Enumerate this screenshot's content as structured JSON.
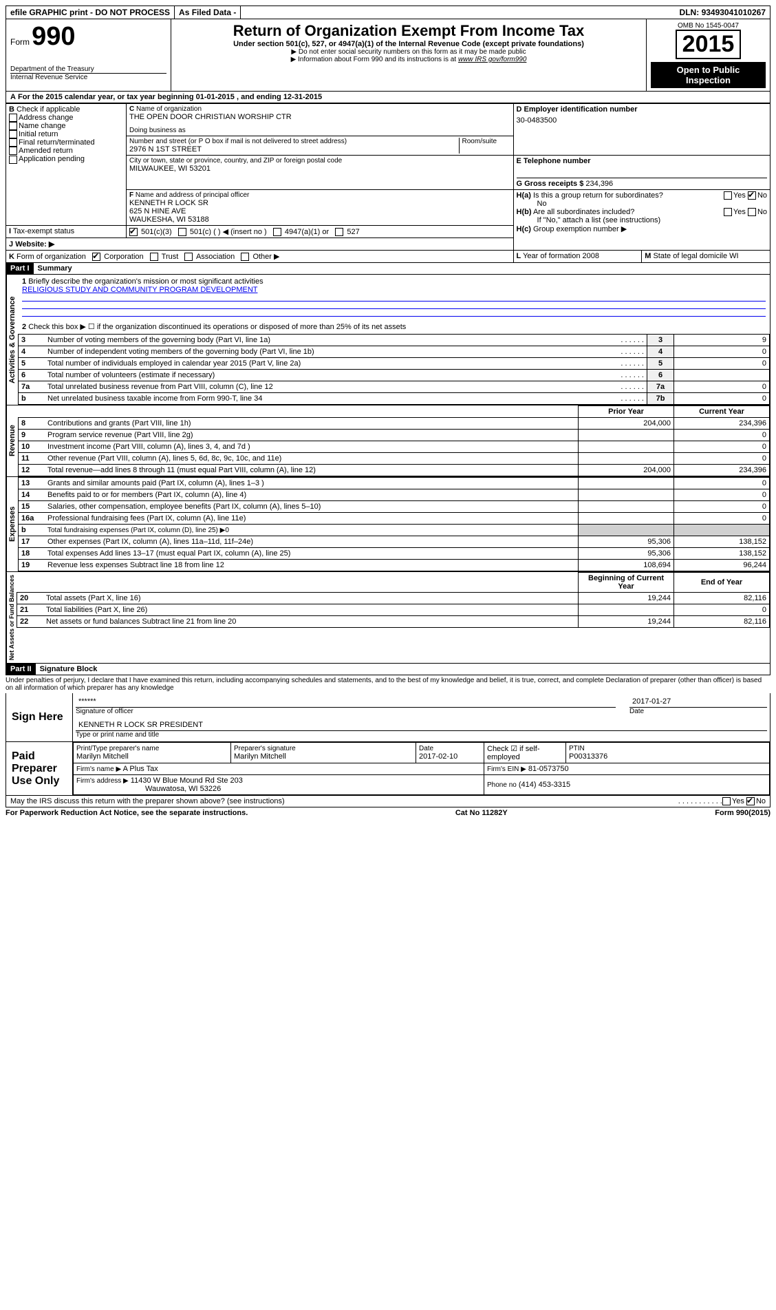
{
  "topbar": {
    "efile": "efile GRAPHIC print - DO NOT PROCESS",
    "asfiled": "As Filed Data -",
    "dln_label": "DLN:",
    "dln": "93493041010267"
  },
  "header": {
    "form_label": "Form",
    "form_number": "990",
    "dept": "Department of the Treasury",
    "irs": "Internal Revenue Service",
    "title": "Return of Organization Exempt From Income Tax",
    "subtitle": "Under section 501(c), 527, or 4947(a)(1) of the Internal Revenue Code (except private foundations)",
    "note1": "▶ Do not enter social security numbers on this form as it may be made public",
    "note2": "▶ Information about Form 990 and its instructions is at",
    "note2_link": "www IRS gov/form990",
    "omb": "OMB No 1545-0047",
    "year": "2015",
    "open_public": "Open to Public Inspection"
  },
  "line_a": {
    "text": "For the 2015 calendar year, or tax year beginning",
    "begin": "01-01-2015",
    "mid": ", and ending",
    "end": "12-31-2015"
  },
  "box_b": {
    "title": "Check if applicable",
    "items": [
      "Address change",
      "Name change",
      "Initial return",
      "Final return/terminated",
      "Amended return",
      "Application pending"
    ]
  },
  "box_c": {
    "label_name": "Name of organization",
    "name": "THE OPEN DOOR CHRISTIAN WORSHIP CTR",
    "dba_label": "Doing business as",
    "dba": "",
    "street_label": "Number and street (or P O box if mail is not delivered to street address)",
    "room_label": "Room/suite",
    "street": "2976 N 1ST STREET",
    "city_label": "City or town, state or province, country, and ZIP or foreign postal code",
    "city": "MILWAUKEE, WI  53201"
  },
  "box_d": {
    "label": "D Employer identification number",
    "value": "30-0483500"
  },
  "box_e": {
    "label": "E Telephone number",
    "value": ""
  },
  "box_g": {
    "label": "G Gross receipts $",
    "value": "234,396"
  },
  "box_f": {
    "label": "Name and address of principal officer",
    "name": "KENNETH R LOCK SR",
    "street": "625 N HINE AVE",
    "city": "WAUKESHA, WI  53188"
  },
  "box_h": {
    "a_label": "Is this a group return for subordinates?",
    "a_yes": "Yes",
    "a_no": "No",
    "a_answer": "No",
    "b_label": "Are all subordinates included?",
    "b_note": "If \"No,\" attach a list (see instructions)",
    "c_label": "Group exemption number ▶"
  },
  "box_i": {
    "label": "Tax-exempt status",
    "opts": [
      "501(c)(3)",
      "501(c) (  ) ◀ (insert no )",
      "4947(a)(1) or",
      "527"
    ]
  },
  "box_j": {
    "label": "Website: ▶"
  },
  "box_k": {
    "label": "Form of organization",
    "opts": [
      "Corporation",
      "Trust",
      "Association",
      "Other ▶"
    ]
  },
  "box_l": {
    "label": "Year of formation",
    "value": "2008"
  },
  "box_m": {
    "label": "State of legal domicile",
    "value": "WI"
  },
  "part1": {
    "header": "Part I",
    "title": "Summary",
    "line1_label": "Briefly describe the organization's mission or most significant activities",
    "mission": "RELIGIOUS STUDY AND COMMUNITY PROGRAM DEVELOPMENT",
    "line2": "Check this box ▶ ☐ if the organization discontinued its operations or disposed of more than 25% of its net assets",
    "vert_gov": "Activities & Governance",
    "vert_rev": "Revenue",
    "vert_exp": "Expenses",
    "vert_net": "Net Assets or Fund Balances",
    "prior_hdr": "Prior Year",
    "current_hdr": "Current Year",
    "begin_hdr": "Beginning of Current Year",
    "end_hdr": "End of Year",
    "rows_gov": [
      {
        "n": "3",
        "desc": "Number of voting members of the governing body (Part VI, line 1a)",
        "box": "3",
        "val": "9"
      },
      {
        "n": "4",
        "desc": "Number of independent voting members of the governing body (Part VI, line 1b)",
        "box": "4",
        "val": "0"
      },
      {
        "n": "5",
        "desc": "Total number of individuals employed in calendar year 2015 (Part V, line 2a)",
        "box": "5",
        "val": "0"
      },
      {
        "n": "6",
        "desc": "Total number of volunteers (estimate if necessary)",
        "box": "6",
        "val": ""
      },
      {
        "n": "7a",
        "desc": "Total unrelated business revenue from Part VIII, column (C), line 12",
        "box": "7a",
        "val": "0"
      },
      {
        "n": "b",
        "desc": "Net unrelated business taxable income from Form 990-T, line 34",
        "box": "7b",
        "val": "0"
      }
    ],
    "rows_rev": [
      {
        "n": "8",
        "desc": "Contributions and grants (Part VIII, line 1h)",
        "prior": "204,000",
        "cur": "234,396"
      },
      {
        "n": "9",
        "desc": "Program service revenue (Part VIII, line 2g)",
        "prior": "",
        "cur": "0"
      },
      {
        "n": "10",
        "desc": "Investment income (Part VIII, column (A), lines 3, 4, and 7d )",
        "prior": "",
        "cur": "0"
      },
      {
        "n": "11",
        "desc": "Other revenue (Part VIII, column (A), lines 5, 6d, 8c, 9c, 10c, and 11e)",
        "prior": "",
        "cur": "0"
      },
      {
        "n": "12",
        "desc": "Total revenue—add lines 8 through 11 (must equal Part VIII, column (A), line 12)",
        "prior": "204,000",
        "cur": "234,396"
      }
    ],
    "rows_exp": [
      {
        "n": "13",
        "desc": "Grants and similar amounts paid (Part IX, column (A), lines 1–3 )",
        "prior": "",
        "cur": "0"
      },
      {
        "n": "14",
        "desc": "Benefits paid to or for members (Part IX, column (A), line 4)",
        "prior": "",
        "cur": "0"
      },
      {
        "n": "15",
        "desc": "Salaries, other compensation, employee benefits (Part IX, column (A), lines 5–10)",
        "prior": "",
        "cur": "0"
      },
      {
        "n": "16a",
        "desc": "Professional fundraising fees (Part IX, column (A), line 11e)",
        "prior": "",
        "cur": "0"
      },
      {
        "n": "b",
        "desc": "Total fundraising expenses (Part IX, column (D), line 25) ▶0",
        "prior": "shaded",
        "cur": "shaded"
      },
      {
        "n": "17",
        "desc": "Other expenses (Part IX, column (A), lines 11a–11d, 11f–24e)",
        "prior": "95,306",
        "cur": "138,152"
      },
      {
        "n": "18",
        "desc": "Total expenses Add lines 13–17 (must equal Part IX, column (A), line 25)",
        "prior": "95,306",
        "cur": "138,152"
      },
      {
        "n": "19",
        "desc": "Revenue less expenses Subtract line 18 from line 12",
        "prior": "108,694",
        "cur": "96,244"
      }
    ],
    "rows_net": [
      {
        "n": "20",
        "desc": "Total assets (Part X, line 16)",
        "prior": "19,244",
        "cur": "82,116"
      },
      {
        "n": "21",
        "desc": "Total liabilities (Part X, line 26)",
        "prior": "",
        "cur": "0"
      },
      {
        "n": "22",
        "desc": "Net assets or fund balances Subtract line 21 from line 20",
        "prior": "19,244",
        "cur": "82,116"
      }
    ]
  },
  "part2": {
    "header": "Part II",
    "title": "Signature Block",
    "perjury": "Under penalties of perjury, I declare that I have examined this return, including accompanying schedules and statements, and to the best of my knowledge and belief, it is true, correct, and complete Declaration of preparer (other than officer) is based on all information of which preparer has any knowledge",
    "sign_here": "Sign Here",
    "sig_stars": "******",
    "sig_officer_label": "Signature of officer",
    "sig_date_label": "Date",
    "sig_date": "2017-01-27",
    "sig_name": "KENNETH R LOCK SR PRESIDENT",
    "sig_name_label": "Type or print name and title",
    "paid_label": "Paid Preparer Use Only",
    "prep_name_label": "Print/Type preparer's name",
    "prep_name": "Marilyn Mitchell",
    "prep_sig_label": "Preparer's signature",
    "prep_sig": "Marilyn Mitchell",
    "prep_date_label": "Date",
    "prep_date": "2017-02-10",
    "self_emp_label": "Check ☑ if self-employed",
    "ptin_label": "PTIN",
    "ptin": "P00313376",
    "firm_name_label": "Firm's name   ▶",
    "firm_name": "A Plus Tax",
    "firm_ein_label": "Firm's EIN ▶",
    "firm_ein": "81-0573750",
    "firm_addr_label": "Firm's address ▶",
    "firm_addr": "11430 W Blue Mound Rd Ste 203",
    "firm_city": "Wauwatosa, WI  53226",
    "phone_label": "Phone no",
    "phone": "(414) 453-3315",
    "discuss": "May the IRS discuss this return with the preparer shown above? (see instructions)",
    "discuss_yes": "Yes",
    "discuss_no": "No"
  },
  "footer": {
    "paperwork": "For Paperwork Reduction Act Notice, see the separate instructions.",
    "catno": "Cat No 11282Y",
    "formver": "Form 990 (2015)"
  }
}
